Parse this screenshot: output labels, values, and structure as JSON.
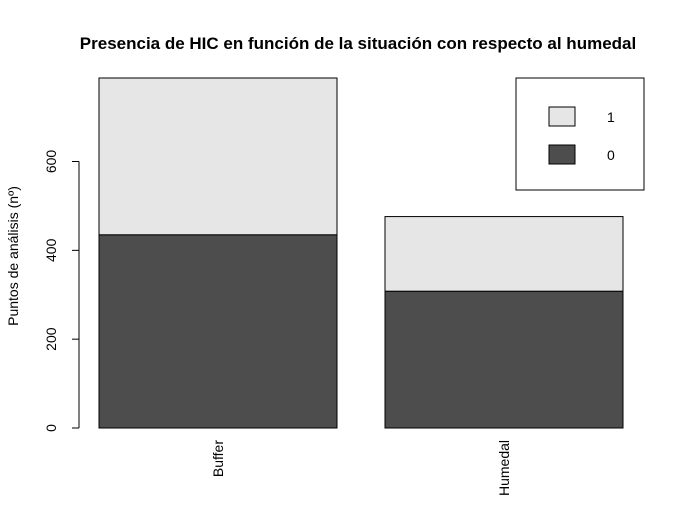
{
  "chart_data": {
    "type": "bar",
    "stacked": true,
    "title": "Presencia de HIC en función de la situación con respecto al humedal",
    "xlabel": "",
    "ylabel": "Puntos de análisis (nº)",
    "categories": [
      "Buffer",
      "Humedal"
    ],
    "series": [
      {
        "name": "0",
        "color": "#4d4d4d",
        "values": [
          435,
          308
        ]
      },
      {
        "name": "1",
        "color": "#e6e6e6",
        "values": [
          353,
          168
        ]
      }
    ],
    "ylim": [
      0,
      788
    ],
    "yticks": [
      0,
      200,
      400,
      600
    ],
    "legend": {
      "position": "top-right",
      "order": [
        "1",
        "0"
      ]
    }
  }
}
